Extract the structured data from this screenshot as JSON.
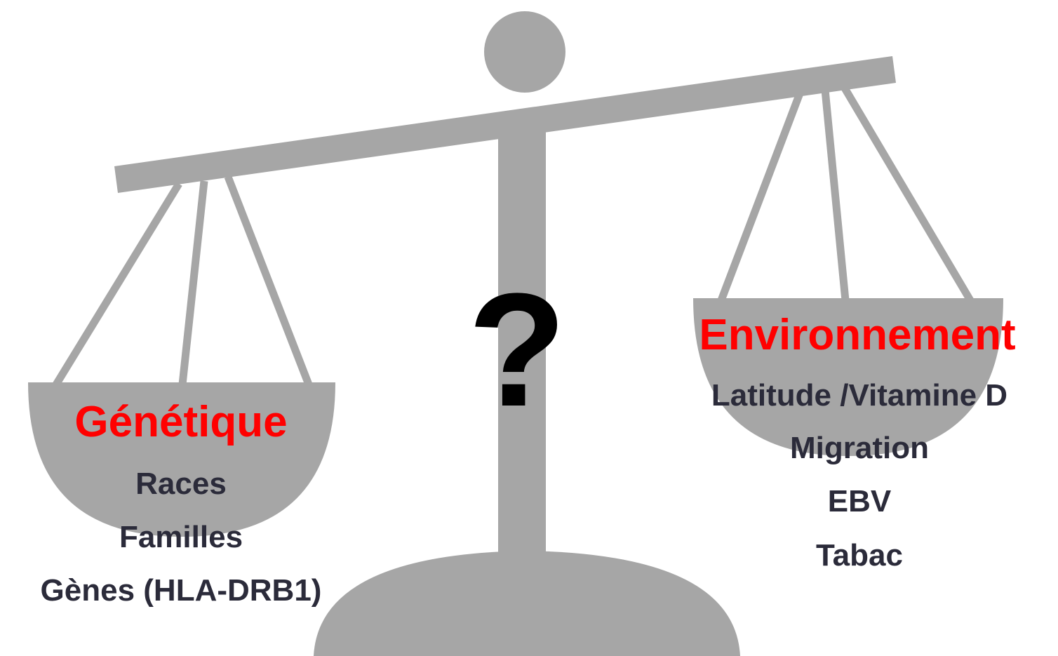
{
  "left": {
    "title": "Génétique",
    "items": [
      "Races",
      "Familles",
      "Gènes (HLA-DRB1)"
    ]
  },
  "right": {
    "title": "Environnement",
    "items": [
      "Latitude /Vitamine D",
      "Migration",
      "EBV",
      "Tabac"
    ]
  },
  "center": "?"
}
